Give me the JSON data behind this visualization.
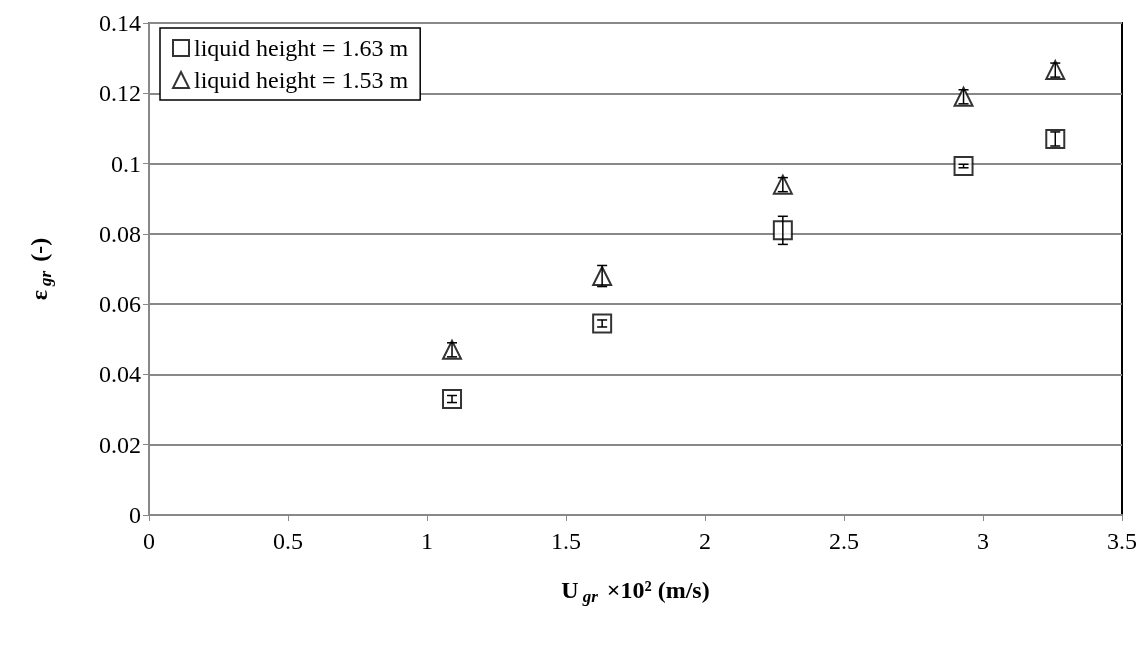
{
  "chart_data": {
    "type": "scatter",
    "xlabel": "U$_{gr}$ ×10² (m/s)",
    "ylabel": "ε$_{gr}$ (-)",
    "x": [
      1.09,
      1.63,
      2.28,
      2.93,
      3.26
    ],
    "series": [
      {
        "name": "liquid height = 1.63 m",
        "color": "#000000",
        "marker": "square",
        "values": [
          0.033,
          0.0545,
          0.081,
          0.0993,
          0.107
        ],
        "errors": [
          0.001,
          0.001,
          0.004,
          0.0005,
          0.002
        ]
      },
      {
        "name": "liquid height = 1.53 m",
        "color": "#000000",
        "marker": "triangle",
        "values": [
          0.047,
          0.068,
          0.094,
          0.119,
          0.1266
        ],
        "errors": [
          0.002,
          0.003,
          0.002,
          0.002,
          0.002
        ]
      }
    ],
    "xlim": [
      0,
      3.5
    ],
    "xticks": [
      0,
      0.5,
      1,
      1.5,
      2,
      2.5,
      3,
      3.5
    ],
    "ylim": [
      0,
      0.14
    ],
    "yticks": [
      0,
      0.02,
      0.04,
      0.06,
      0.08,
      0.1,
      0.12,
      0.14
    ],
    "grid": "y",
    "legend": "top left"
  }
}
